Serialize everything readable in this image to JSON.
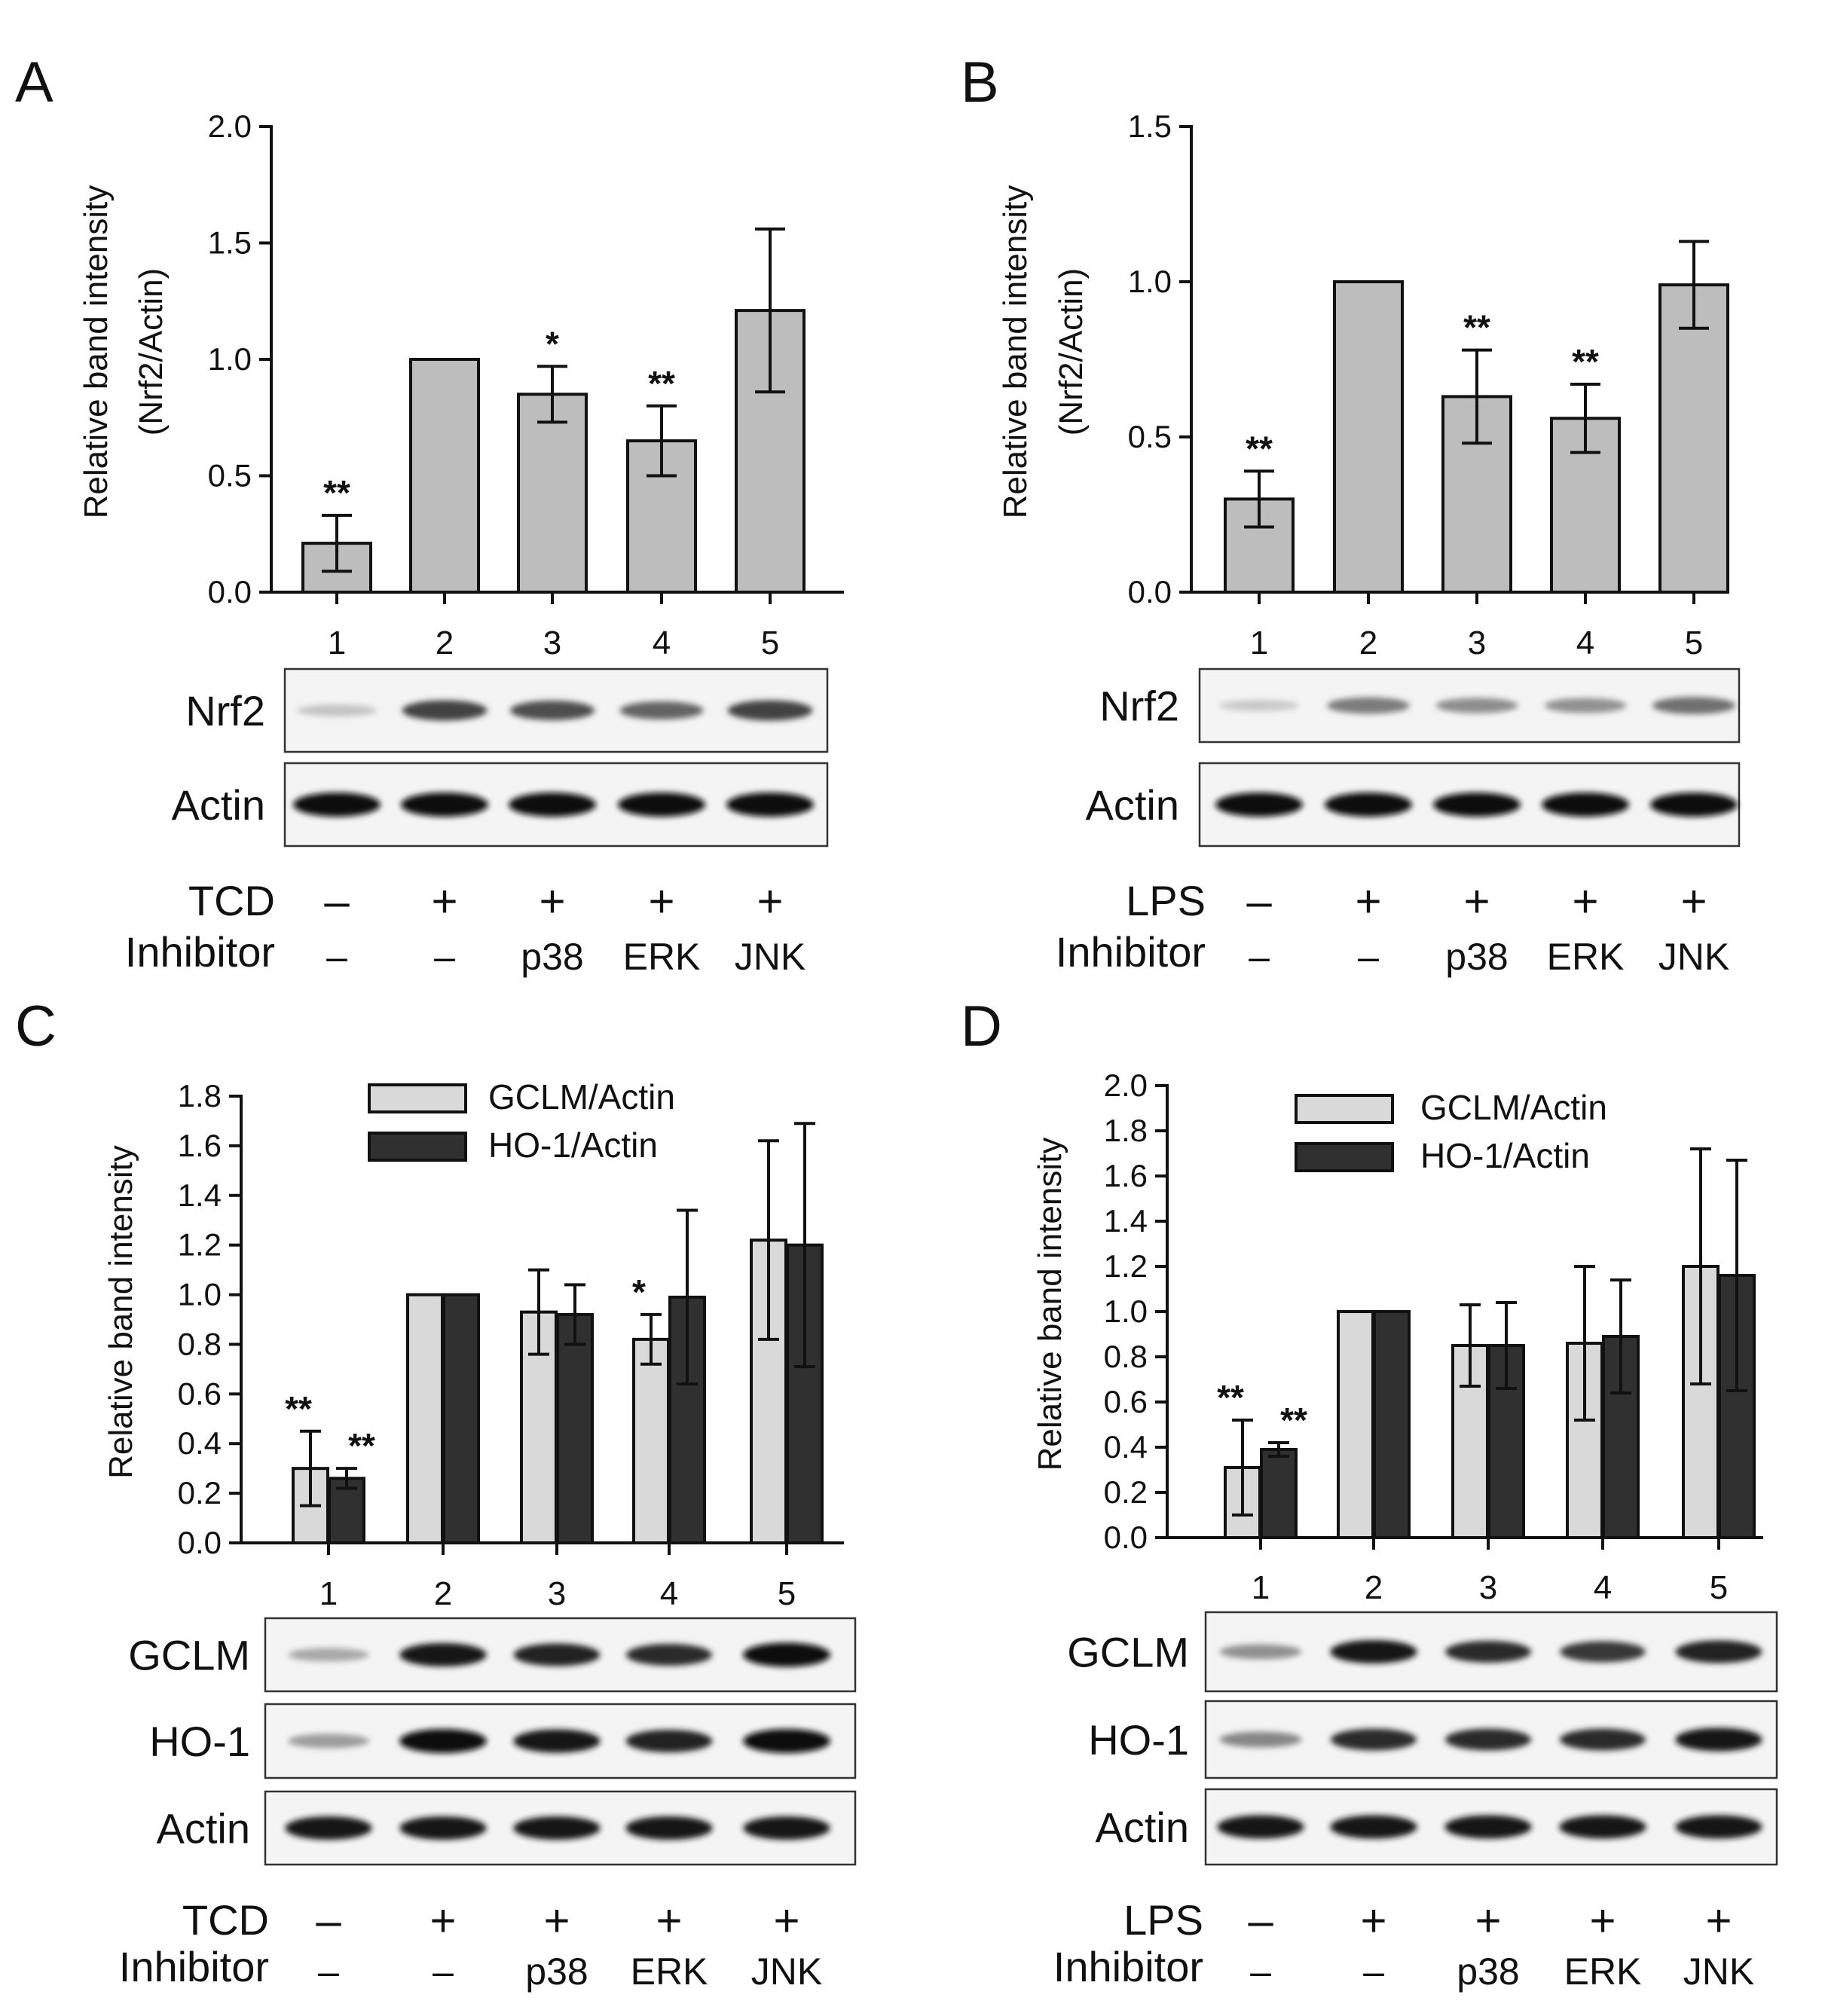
{
  "chart_data": [
    {
      "panel": "A",
      "type": "bar",
      "ylabel": [
        "Relative band intensity",
        "(Nrf2/Actin)"
      ],
      "ylim": [
        0,
        2.0
      ],
      "yticks": [
        "0.0",
        "0.5",
        "1.0",
        "1.5",
        "2.0"
      ],
      "categories": [
        "1",
        "2",
        "3",
        "4",
        "5"
      ],
      "series": [
        {
          "name": "Nrf2/Actin",
          "color": "#bdbdbd",
          "values": [
            0.21,
            1.0,
            0.85,
            0.65,
            1.21
          ],
          "errors": [
            0.12,
            0,
            0.12,
            0.15,
            0.35
          ],
          "sig": [
            "**",
            "",
            "*",
            "**",
            ""
          ]
        }
      ],
      "blots": [
        {
          "label": "Nrf2",
          "intensities": [
            0.18,
            0.75,
            0.7,
            0.6,
            0.75
          ]
        },
        {
          "label": "Actin",
          "intensities": [
            1.0,
            1.0,
            1.0,
            1.0,
            1.0
          ]
        }
      ],
      "treatment": {
        "label": "TCD",
        "values": [
          "–",
          "+",
          "+",
          "+",
          "+"
        ]
      },
      "inhibitor": {
        "label": "Inhibitor",
        "values": [
          "–",
          "–",
          "p38",
          "ERK",
          "JNK"
        ]
      }
    },
    {
      "panel": "B",
      "type": "bar",
      "ylabel": [
        "Relative band intensity",
        "(Nrf2/Actin)"
      ],
      "ylim": [
        0,
        1.5
      ],
      "yticks": [
        "0.0",
        "0.5",
        "1.0",
        "1.5"
      ],
      "categories": [
        "1",
        "2",
        "3",
        "4",
        "5"
      ],
      "series": [
        {
          "name": "Nrf2/Actin",
          "color": "#bdbdbd",
          "values": [
            0.3,
            1.0,
            0.63,
            0.56,
            0.99
          ],
          "errors": [
            0.09,
            0,
            0.15,
            0.11,
            0.14
          ],
          "sig": [
            "**",
            "",
            "**",
            "**",
            ""
          ]
        }
      ],
      "blots": [
        {
          "label": "Nrf2",
          "intensities": [
            0.15,
            0.5,
            0.42,
            0.4,
            0.55
          ]
        },
        {
          "label": "Actin",
          "intensities": [
            1.0,
            1.0,
            1.0,
            1.0,
            1.0
          ]
        }
      ],
      "treatment": {
        "label": "LPS",
        "values": [
          "–",
          "+",
          "+",
          "+",
          "+"
        ]
      },
      "inhibitor": {
        "label": "Inhibitor",
        "values": [
          "–",
          "–",
          "p38",
          "ERK",
          "JNK"
        ]
      }
    },
    {
      "panel": "C",
      "type": "bar",
      "ylabel": [
        "Relative band intensity"
      ],
      "ylim": [
        0,
        1.8
      ],
      "yticks": [
        "0.0",
        "0.2",
        "0.4",
        "0.6",
        "0.8",
        "1.0",
        "1.2",
        "1.4",
        "1.6",
        "1.8"
      ],
      "categories": [
        "1",
        "2",
        "3",
        "4",
        "5"
      ],
      "legend": [
        {
          "name": "GCLM/Actin",
          "color": "#d9d9d9"
        },
        {
          "name": "HO-1/Actin",
          "color": "#303030"
        }
      ],
      "series": [
        {
          "name": "GCLM/Actin",
          "color": "#d9d9d9",
          "values": [
            0.3,
            1.0,
            0.93,
            0.82,
            1.22
          ],
          "errors": [
            0.15,
            0,
            0.17,
            0.1,
            0.4
          ],
          "sig": [
            "**",
            "",
            "",
            "*",
            ""
          ]
        },
        {
          "name": "HO-1/Actin",
          "color": "#303030",
          "values": [
            0.26,
            1.0,
            0.92,
            0.99,
            1.2
          ],
          "errors": [
            0.04,
            0,
            0.12,
            0.35,
            0.49
          ],
          "sig": [
            "**",
            "",
            "",
            "",
            ""
          ]
        }
      ],
      "blots": [
        {
          "label": "GCLM",
          "intensities": [
            0.3,
            0.95,
            0.9,
            0.85,
            1.0
          ]
        },
        {
          "label": "HO-1",
          "intensities": [
            0.35,
            1.0,
            0.95,
            0.9,
            1.0
          ]
        },
        {
          "label": "Actin",
          "intensities": [
            0.95,
            0.95,
            0.95,
            0.95,
            0.95
          ]
        }
      ],
      "treatment": {
        "label": "TCD",
        "values": [
          "–",
          "+",
          "+",
          "+",
          "+"
        ]
      },
      "inhibitor": {
        "label": "Inhibitor",
        "values": [
          "–",
          "–",
          "p38",
          "ERK",
          "JNK"
        ]
      }
    },
    {
      "panel": "D",
      "type": "bar",
      "ylabel": [
        "Relative band intensity"
      ],
      "ylim": [
        0,
        2.0
      ],
      "yticks": [
        "0.0",
        "0.2",
        "0.4",
        "0.6",
        "0.8",
        "1.0",
        "1.2",
        "1.4",
        "1.6",
        "1.8",
        "2.0"
      ],
      "categories": [
        "1",
        "2",
        "3",
        "4",
        "5"
      ],
      "legend": [
        {
          "name": "GCLM/Actin",
          "color": "#d9d9d9"
        },
        {
          "name": "HO-1/Actin",
          "color": "#303030"
        }
      ],
      "series": [
        {
          "name": "GCLM/Actin",
          "color": "#d9d9d9",
          "values": [
            0.31,
            1.0,
            0.85,
            0.86,
            1.2
          ],
          "errors": [
            0.21,
            0,
            0.18,
            0.34,
            0.52
          ],
          "sig": [
            "**",
            "",
            "",
            "",
            ""
          ]
        },
        {
          "name": "HO-1/Actin",
          "color": "#303030",
          "values": [
            0.39,
            1.0,
            0.85,
            0.89,
            1.16
          ],
          "errors": [
            0.03,
            0,
            0.19,
            0.25,
            0.51
          ],
          "sig": [
            "**",
            "",
            "",
            "",
            ""
          ]
        }
      ],
      "blots": [
        {
          "label": "GCLM",
          "intensities": [
            0.4,
            0.95,
            0.85,
            0.8,
            0.9
          ]
        },
        {
          "label": "HO-1",
          "intensities": [
            0.45,
            0.85,
            0.85,
            0.85,
            0.95
          ]
        },
        {
          "label": "Actin",
          "intensities": [
            0.95,
            0.95,
            0.95,
            0.95,
            0.95
          ]
        }
      ],
      "treatment": {
        "label": "LPS",
        "values": [
          "–",
          "+",
          "+",
          "+",
          "+"
        ]
      },
      "inhibitor": {
        "label": "Inhibitor",
        "values": [
          "–",
          "–",
          "p38",
          "ERK",
          "JNK"
        ]
      }
    }
  ]
}
